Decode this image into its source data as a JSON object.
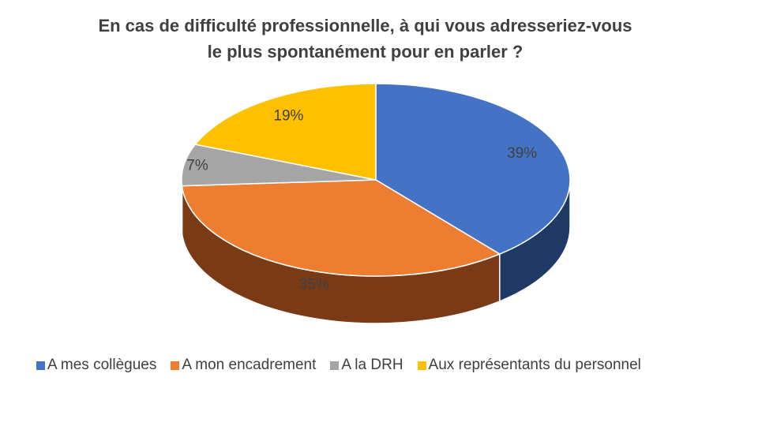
{
  "chart_data": {
    "type": "pie",
    "title_lines": [
      "En cas de difficulté professionnelle, à qui vous adresseriez-vous",
      "le plus spontanément pour en parler ?"
    ],
    "categories": [
      "A mes collègues",
      "A mon encadrement",
      "A la DRH",
      "Aux représentants du personnel"
    ],
    "values": [
      39,
      35,
      7,
      19
    ],
    "data_labels": [
      "39%",
      "35%",
      "7%",
      "19%"
    ],
    "colors": [
      "#4472C4",
      "#ED7D31",
      "#A5A5A5",
      "#FFC000"
    ],
    "side_colors": [
      "#203864",
      "#7A3A16",
      "#5A5A5A",
      "#8A6500"
    ],
    "legend_position": "bottom",
    "style": "3d"
  }
}
